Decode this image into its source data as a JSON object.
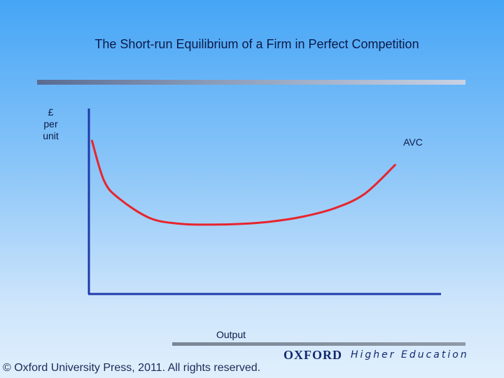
{
  "slide": {
    "title": "The Short-run Equilibrium of a Firm in Perfect Competition"
  },
  "chart_data": {
    "type": "line",
    "ylabel_lines": [
      "£",
      "per",
      "unit"
    ],
    "xlabel": "Output",
    "series": [
      {
        "name": "AVC",
        "color": "#e8242c",
        "x": [
          0.1,
          0.5,
          1,
          2,
          3,
          4,
          5,
          6,
          7,
          8,
          9,
          10
        ],
        "y": [
          9.5,
          7.0,
          5.9,
          4.7,
          4.35,
          4.3,
          4.35,
          4.5,
          4.8,
          5.3,
          6.2,
          8.0
        ]
      }
    ],
    "xlim": [
      0,
      11.5
    ],
    "ylim": [
      0,
      11.5
    ],
    "axis_color": "#1f3aa8",
    "grid": false
  },
  "footer": {
    "copyright": "© Oxford University Press, 2011. All rights reserved.",
    "logo_main": "OXFORD",
    "logo_sub": "Higher Education"
  }
}
